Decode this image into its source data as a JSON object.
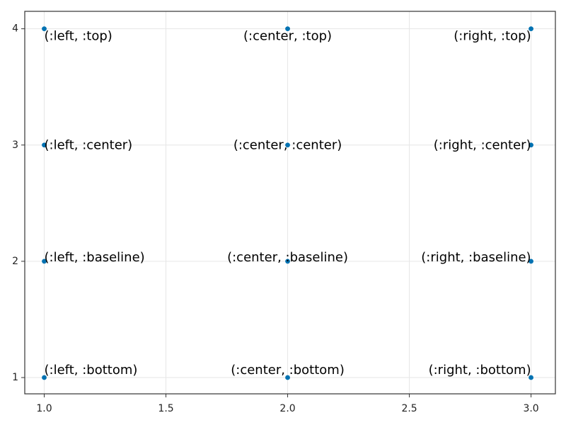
{
  "chart_data": {
    "type": "scatter",
    "title": "",
    "xlabel": "",
    "ylabel": "",
    "xlim": [
      0.92,
      3.1
    ],
    "ylim": [
      0.86,
      4.15
    ],
    "xticks": [
      1.0,
      1.5,
      2.0,
      2.5,
      3.0
    ],
    "xtick_labels": [
      "1.0",
      "1.5",
      "2.0",
      "2.5",
      "3.0"
    ],
    "yticks": [
      1,
      2,
      3,
      4
    ],
    "ytick_labels": [
      "1",
      "2",
      "3",
      "4"
    ],
    "grid": true,
    "legend": "none",
    "colors": {
      "point": "#0072b2",
      "grid": "#e6e6e6",
      "frame": "#333333",
      "text": "#000000"
    },
    "points": [
      {
        "x": 1,
        "y": 4,
        "label": "(:left, :top)",
        "align": [
          "left",
          "top"
        ]
      },
      {
        "x": 2,
        "y": 4,
        "label": "(:center, :top)",
        "align": [
          "center",
          "top"
        ]
      },
      {
        "x": 3,
        "y": 4,
        "label": "(:right, :top)",
        "align": [
          "right",
          "top"
        ]
      },
      {
        "x": 1,
        "y": 3,
        "label": "(:left, :center)",
        "align": [
          "left",
          "center"
        ]
      },
      {
        "x": 2,
        "y": 3,
        "label": "(:center, :center)",
        "align": [
          "center",
          "center"
        ]
      },
      {
        "x": 3,
        "y": 3,
        "label": "(:right, :center)",
        "align": [
          "right",
          "center"
        ]
      },
      {
        "x": 1,
        "y": 2,
        "label": "(:left, :baseline)",
        "align": [
          "left",
          "baseline"
        ]
      },
      {
        "x": 2,
        "y": 2,
        "label": "(:center, :baseline)",
        "align": [
          "center",
          "baseline"
        ]
      },
      {
        "x": 3,
        "y": 2,
        "label": "(:right, :baseline)",
        "align": [
          "right",
          "baseline"
        ]
      },
      {
        "x": 1,
        "y": 1,
        "label": "(:left, :bottom)",
        "align": [
          "left",
          "bottom"
        ]
      },
      {
        "x": 2,
        "y": 1,
        "label": "(:center, :bottom)",
        "align": [
          "center",
          "bottom"
        ]
      },
      {
        "x": 3,
        "y": 1,
        "label": "(:right, :bottom)",
        "align": [
          "right",
          "bottom"
        ]
      }
    ]
  }
}
